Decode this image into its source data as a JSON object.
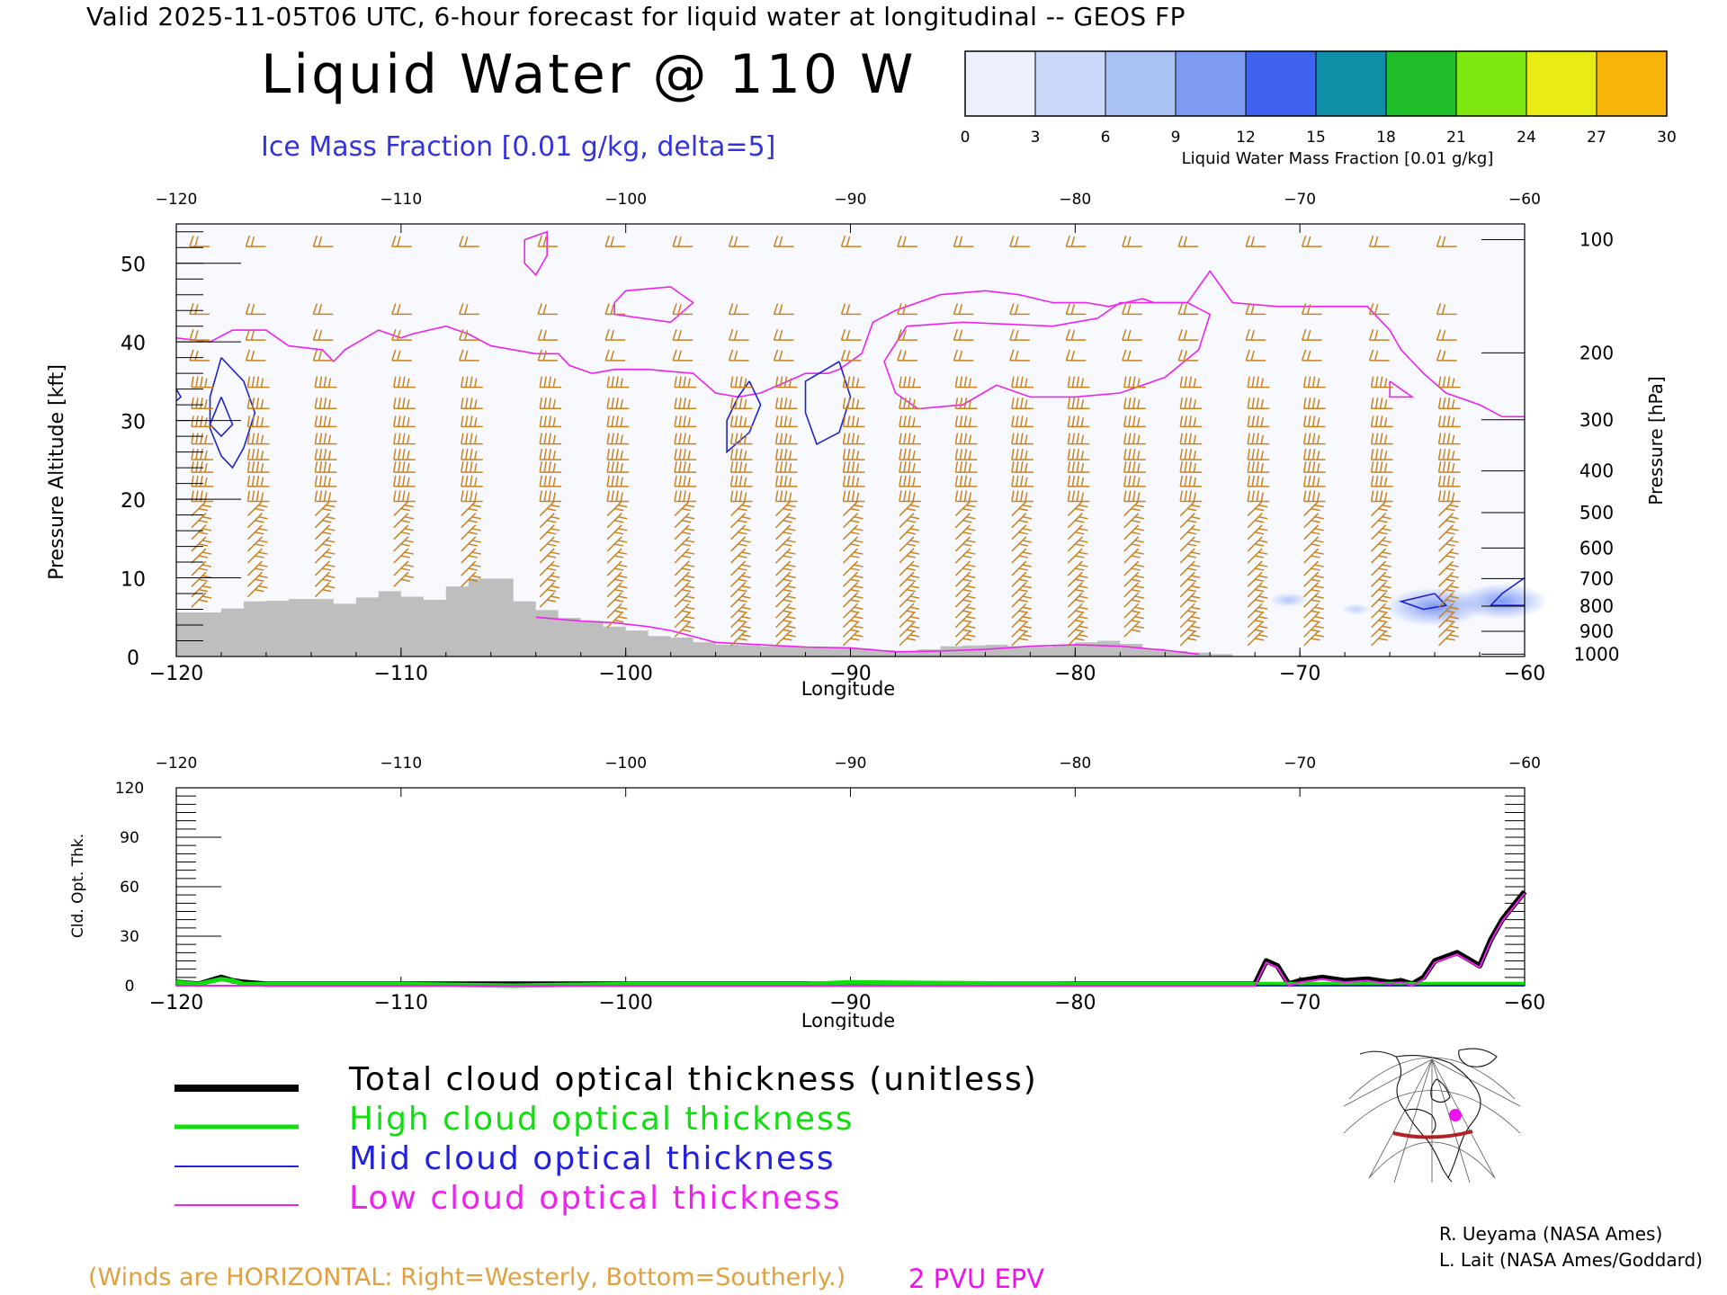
{
  "header": {
    "line": "Valid 2025-11-05T06 UTC, 6-hour forecast for liquid water at longitudinal -- GEOS FP",
    "title": "Liquid Water @ 110 W",
    "subtitle": "Ice Mass Fraction [0.01 g/kg, delta=5]"
  },
  "colorbar": {
    "label": "Liquid Water Mass Fraction [0.01 g/kg]",
    "ticks": [
      "0",
      "3",
      "6",
      "9",
      "12",
      "15",
      "18",
      "21",
      "24",
      "27",
      "30"
    ],
    "colors": [
      "#eef1fb",
      "#c9d7f8",
      "#a9c1f3",
      "#7d9df2",
      "#3f63ee",
      "#0f8fa8",
      "#1fbf2a",
      "#7fe810",
      "#e8ec14",
      "#f7b50a",
      "#f56a0c"
    ]
  },
  "colors": {
    "barb": "#c8821e",
    "terrain": "#bebebe",
    "epv": "#ee22ee",
    "ice_contour": "#2222cc",
    "total_cloud": "#000000",
    "high_cloud": "#11dd11",
    "mid_cloud": "#2222dd",
    "low_cloud": "#ee22ee"
  },
  "chart_data": [
    {
      "type": "heatmap",
      "title": "Liquid Water @ 110 W",
      "xlabel": "Longitude",
      "ylabel": "Pressure Altitude [kft]",
      "ylabel_right": "Pressure [hPa]",
      "xlim": [
        -120,
        -60
      ],
      "ylim": [
        0,
        55
      ],
      "x_ticks": [
        "-120",
        "-110",
        "-100",
        "-90",
        "-80",
        "-70",
        "-60"
      ],
      "y_ticks": [
        "0",
        "10",
        "20",
        "30",
        "40",
        "50"
      ],
      "pressure_ticks": [
        {
          "label": "100",
          "kft": 53
        },
        {
          "label": "200",
          "kft": 38.6
        },
        {
          "label": "300",
          "kft": 30.1
        },
        {
          "label": "400",
          "kft": 23.6
        },
        {
          "label": "500",
          "kft": 18.3
        },
        {
          "label": "600",
          "kft": 13.8
        },
        {
          "label": "700",
          "kft": 9.9
        },
        {
          "label": "800",
          "kft": 6.4
        },
        {
          "label": "900",
          "kft": 3.2
        },
        {
          "label": "1000",
          "kft": 0.3
        }
      ],
      "terrain_kft": [
        [
          -120,
          5.6
        ],
        [
          -119,
          5.6
        ],
        [
          -118,
          6.1
        ],
        [
          -117,
          7.0
        ],
        [
          -116,
          7.1
        ],
        [
          -115,
          7.3
        ],
        [
          -114,
          7.3
        ],
        [
          -113,
          6.7
        ],
        [
          -112,
          7.5
        ],
        [
          -111,
          8.3
        ],
        [
          -110,
          7.6
        ],
        [
          -109,
          7.2
        ],
        [
          -108,
          8.9
        ],
        [
          -107,
          9.9
        ],
        [
          -106,
          9.9
        ],
        [
          -105,
          7.0
        ],
        [
          -104,
          5.9
        ],
        [
          -103,
          4.9
        ],
        [
          -102,
          4.5
        ],
        [
          -101,
          3.8
        ],
        [
          -100,
          3.3
        ],
        [
          -99,
          2.6
        ],
        [
          -98,
          2.4
        ],
        [
          -97,
          1.8
        ],
        [
          -96,
          1.5
        ],
        [
          -95,
          1.4
        ],
        [
          -94,
          1.3
        ],
        [
          -93,
          1.3
        ],
        [
          -92,
          1.2
        ],
        [
          -91,
          1.1
        ],
        [
          -90,
          1.0
        ],
        [
          -89,
          0.8
        ],
        [
          -88,
          0.7
        ],
        [
          -87,
          0.9
        ],
        [
          -86,
          1.3
        ],
        [
          -85,
          1.4
        ],
        [
          -84,
          1.5
        ],
        [
          -83,
          1.3
        ],
        [
          -82,
          1.2
        ],
        [
          -81,
          1.5
        ],
        [
          -80,
          1.8
        ],
        [
          -79,
          2.0
        ],
        [
          -78,
          1.6
        ],
        [
          -77,
          1.0
        ],
        [
          -76,
          0.7
        ],
        [
          -75,
          0.5
        ],
        [
          -74,
          0.3
        ]
      ],
      "epv_2pvu": {
        "main": [
          [
            -120,
            40.5
          ],
          [
            -118.5,
            40
          ],
          [
            -117.5,
            41.5
          ],
          [
            -116,
            41.5
          ],
          [
            -115,
            39.5
          ],
          [
            -113.5,
            39
          ],
          [
            -113,
            37.5
          ],
          [
            -112.5,
            39
          ],
          [
            -111,
            41.5
          ],
          [
            -110,
            40.5
          ],
          [
            -109.5,
            41
          ],
          [
            -108,
            42
          ],
          [
            -107,
            41
          ],
          [
            -106,
            39.5
          ],
          [
            -104,
            38.5
          ],
          [
            -103,
            38.5
          ],
          [
            -102.5,
            37
          ],
          [
            -101.5,
            36
          ],
          [
            -100.5,
            36.5
          ],
          [
            -99,
            36.5
          ],
          [
            -97,
            36
          ],
          [
            -96,
            33.5
          ],
          [
            -95,
            33
          ],
          [
            -94,
            33.5
          ],
          [
            -92,
            36
          ],
          [
            -91,
            36
          ],
          [
            -90.5,
            36.5
          ],
          [
            -89.5,
            38.5
          ],
          [
            -89,
            42.5
          ],
          [
            -88,
            44
          ],
          [
            -86,
            46
          ],
          [
            -84,
            46.5
          ],
          [
            -82.5,
            46
          ],
          [
            -81,
            45
          ],
          [
            -79.5,
            45
          ],
          [
            -78.5,
            44.5
          ],
          [
            -77,
            45.5
          ],
          [
            -76.5,
            45
          ],
          [
            -75,
            45
          ],
          [
            -74,
            49
          ],
          [
            -73,
            45
          ],
          [
            -71,
            44.5
          ],
          [
            -69,
            44.5
          ],
          [
            -67,
            44.5
          ],
          [
            -66,
            41.5
          ],
          [
            -65.5,
            39
          ],
          [
            -64.5,
            36
          ],
          [
            -63.5,
            33.5
          ],
          [
            -62,
            32
          ],
          [
            -61,
            30.5
          ],
          [
            -60,
            30.5
          ]
        ],
        "low": [
          [
            -104,
            5
          ],
          [
            -102,
            4.5
          ],
          [
            -100.5,
            4.3
          ],
          [
            -99,
            3.8
          ],
          [
            -98,
            3.3
          ],
          [
            -96,
            1.8
          ],
          [
            -94,
            1.5
          ],
          [
            -92,
            1.2
          ],
          [
            -90,
            1.1
          ],
          [
            -88,
            0.6
          ],
          [
            -86,
            0.7
          ],
          [
            -84,
            0.9
          ],
          [
            -82,
            1.3
          ],
          [
            -80,
            1.5
          ],
          [
            -78,
            1.3
          ],
          [
            -76,
            0.8
          ],
          [
            -74.5,
            0.3
          ]
        ],
        "loops": [
          [
            [
              -104.5,
              53
            ],
            [
              -103.5,
              54
            ],
            [
              -103.5,
              51
            ],
            [
              -104,
              48.5
            ],
            [
              -104.5,
              50
            ],
            [
              -104.5,
              53
            ]
          ],
          [
            [
              -100.5,
              45
            ],
            [
              -100,
              46.5
            ],
            [
              -98,
              47
            ],
            [
              -97,
              45
            ],
            [
              -98,
              42.5
            ],
            [
              -100.5,
              43.5
            ],
            [
              -100.5,
              45
            ]
          ],
          [
            [
              -87.5,
              42
            ],
            [
              -85,
              42.5
            ],
            [
              -81,
              42
            ],
            [
              -79,
              43
            ],
            [
              -78,
              45
            ],
            [
              -77,
              45
            ],
            [
              -75,
              45
            ],
            [
              -74,
              43.5
            ],
            [
              -74.5,
              39
            ],
            [
              -76,
              35.5
            ],
            [
              -78,
              33.5
            ],
            [
              -80,
              33
            ],
            [
              -82,
              33
            ],
            [
              -83.5,
              34.5
            ],
            [
              -85,
              32
            ],
            [
              -87,
              31.5
            ],
            [
              -88,
              33.5
            ],
            [
              -88.5,
              37.5
            ],
            [
              -87.5,
              42
            ]
          ],
          [
            [
              -66,
              35
            ],
            [
              -65.5,
              34
            ],
            [
              -65,
              33
            ],
            [
              -66,
              33
            ],
            [
              -66,
              35
            ]
          ]
        ]
      },
      "ice_contours_5": [
        [
          [
            -118,
            38
          ],
          [
            -117,
            35
          ],
          [
            -116.5,
            31
          ],
          [
            -117,
            26.5
          ],
          [
            -117.5,
            24
          ],
          [
            -118,
            25.5
          ],
          [
            -118.5,
            29
          ],
          [
            -118.5,
            33
          ],
          [
            -118,
            38
          ]
        ],
        [
          [
            -118,
            33
          ],
          [
            -117.5,
            29.5
          ],
          [
            -118,
            28
          ],
          [
            -118.5,
            29.5
          ],
          [
            -118,
            33
          ]
        ],
        [
          [
            -94.5,
            35
          ],
          [
            -94,
            32
          ],
          [
            -94.5,
            28.5
          ],
          [
            -95.5,
            26
          ],
          [
            -95.5,
            30
          ],
          [
            -95,
            33
          ],
          [
            -94.5,
            35
          ]
        ],
        [
          [
            -90.5,
            37.5
          ],
          [
            -90,
            33
          ],
          [
            -90.5,
            28.5
          ],
          [
            -91.5,
            27
          ],
          [
            -92,
            31
          ],
          [
            -92,
            35
          ],
          [
            -90.5,
            37.5
          ]
        ],
        [
          [
            -120,
            34
          ],
          [
            -119.8,
            33
          ],
          [
            -120,
            32.5
          ]
        ],
        [
          [
            -64,
            8
          ],
          [
            -63.5,
            6.5
          ],
          [
            -64.5,
            6
          ],
          [
            -65.5,
            7
          ],
          [
            -64,
            8
          ]
        ],
        [
          [
            -60,
            10
          ],
          [
            -61,
            8
          ],
          [
            -61.5,
            6.5
          ],
          [
            -60,
            6.5
          ]
        ]
      ],
      "liquid_blobs": [
        {
          "lon": -70.5,
          "kft": 7.2,
          "value": 2
        },
        {
          "lon": -67.5,
          "kft": 6.0,
          "value": 1
        },
        {
          "lon": -64,
          "kft": 6.3,
          "value": 9
        },
        {
          "lon": -61,
          "kft": 7.0,
          "value": 8
        }
      ],
      "wind_barbs": {
        "longitudes": [
          -119,
          -116.5,
          -113.5,
          -110,
          -107,
          -103.5,
          -100.5,
          -97.5,
          -95,
          -93,
          -90,
          -87.5,
          -85,
          -82.5,
          -80,
          -77.5,
          -75,
          -72,
          -69.5,
          -66.5,
          -63.5
        ],
        "levels_kft": [
          52.7,
          44.1,
          40.8,
          38.2,
          34.8,
          32.1,
          29.8,
          27.6,
          25.6,
          24,
          22.2,
          20.3,
          18.8,
          17.3,
          15.8,
          14.3,
          12.8,
          11.2,
          9.8,
          8.5,
          7.2,
          5.8,
          4.6,
          3.4,
          2.3
        ]
      }
    },
    {
      "type": "line",
      "xlabel": "Longitude",
      "ylabel": "Cld. Opt. Thk.",
      "xlim": [
        -120,
        -60
      ],
      "ylim": [
        0,
        120
      ],
      "x_ticks": [
        "-120",
        "-110",
        "-100",
        "-90",
        "-80",
        "-70",
        "-60"
      ],
      "y_ticks": [
        "0",
        "30",
        "60",
        "90",
        "120"
      ],
      "series": [
        {
          "name": "Total cloud optical thickness (unitless)",
          "color": "#000000",
          "x": [
            -120,
            -119,
            -118.5,
            -118,
            -117.5,
            -117,
            -116,
            -110,
            -100,
            -90,
            -80,
            -72,
            -71.5,
            -71,
            -70.5,
            -70,
            -69,
            -68,
            -67,
            -66,
            -65.5,
            -65,
            -64.5,
            -64,
            -63,
            -62,
            -61.5,
            -61,
            -60
          ],
          "y": [
            2,
            1,
            3,
            5,
            3,
            2,
            1,
            1,
            1,
            1,
            1,
            1,
            15,
            12,
            1,
            3,
            5,
            3,
            4,
            2,
            3,
            1,
            5,
            15,
            20,
            12,
            28,
            40,
            57
          ]
        },
        {
          "name": "High cloud optical thickness",
          "color": "#11dd11",
          "x": [
            -120,
            -119,
            -118,
            -117.5,
            -117,
            -116,
            -110,
            -105,
            -100,
            -92,
            -90,
            -80,
            -70,
            -60
          ],
          "y": [
            2,
            1,
            4,
            3,
            1,
            1,
            1,
            0,
            1,
            1,
            2,
            1,
            1,
            1
          ]
        },
        {
          "name": "Mid cloud optical thickness",
          "color": "#2222dd",
          "x": [
            -120,
            -110,
            -100,
            -90,
            -80,
            -70,
            -60
          ],
          "y": [
            0,
            0,
            0,
            0,
            0,
            0,
            0
          ]
        },
        {
          "name": "Low cloud optical thickness",
          "color": "#ee22ee",
          "x": [
            -120,
            -110,
            -100,
            -90,
            -80,
            -72,
            -71.5,
            -71,
            -70.5,
            -70,
            -69,
            -68,
            -67,
            -66,
            -65.5,
            -65,
            -64.5,
            -64,
            -63,
            -62,
            -61.5,
            -61,
            -60
          ],
          "y": [
            0,
            0,
            0,
            0,
            0,
            0,
            14,
            11,
            0,
            2,
            4,
            2,
            3,
            1,
            2,
            0,
            4,
            14,
            19,
            11,
            27,
            39,
            56
          ]
        }
      ]
    }
  ],
  "legend": {
    "items": [
      {
        "label": "Total cloud optical thickness (unitless)",
        "color": "#000000"
      },
      {
        "label": "High cloud optical thickness",
        "color": "#11dd11"
      },
      {
        "label": "Mid cloud optical thickness",
        "color": "#2222dd"
      },
      {
        "label": "Low cloud optical thickness",
        "color": "#ee22ee"
      }
    ]
  },
  "credits": [
    "R. Ueyama (NASA Ames)",
    "L. Lait (NASA Ames/Goddard)"
  ],
  "footer": {
    "note": "(Winds are HORIZONTAL: Right=Westerly, Bottom=Southerly.)",
    "epv": "2 PVU EPV"
  }
}
